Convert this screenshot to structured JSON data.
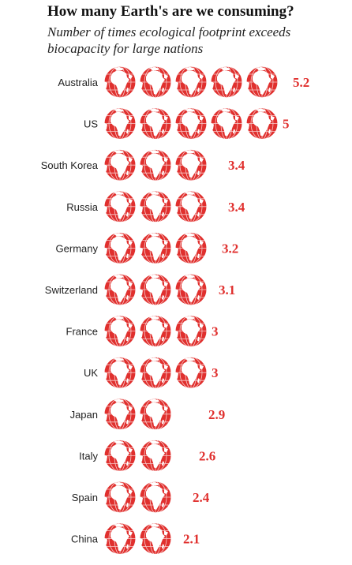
{
  "title": "How many Earth's are we consuming?",
  "subtitle": "Number of times ecological footprint exceeds biocapacity for large nations",
  "colors": {
    "globe": "#e0302e",
    "value_text": "#e0302e",
    "land": "#ffffff"
  },
  "icon": "globe-africa-icon",
  "chart_data": {
    "type": "pictograph",
    "title": "How many Earth's are we consuming?",
    "subtitle": "Number of times ecological footprint exceeds biocapacity for large nations",
    "unit_icon": "globe-icon",
    "unit_value": 1,
    "categories": [
      "Australia",
      "US",
      "South Korea",
      "Russia",
      "Germany",
      "Switzerland",
      "France",
      "UK",
      "Japan",
      "Italy",
      "Spain",
      "China"
    ],
    "values": [
      5.2,
      5,
      3.4,
      3.4,
      3.2,
      3.1,
      3,
      3,
      2.9,
      2.6,
      2.4,
      2.1
    ],
    "value_labels": [
      "5.2",
      "5",
      "3.4",
      "3.4",
      "3.2",
      "3.1",
      "3",
      "3",
      "2.9",
      "2.6",
      "2.4",
      "2.1"
    ]
  }
}
